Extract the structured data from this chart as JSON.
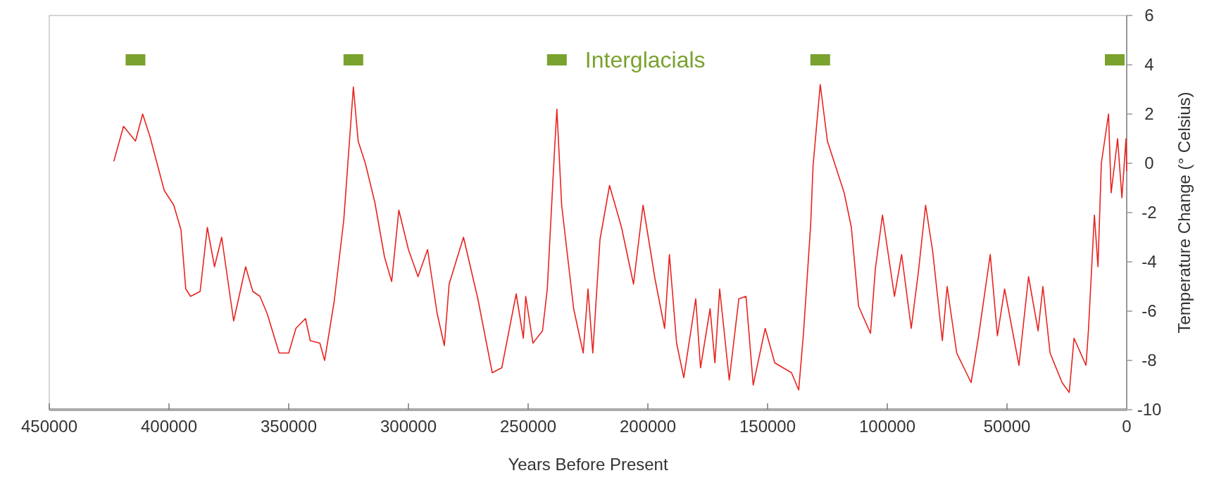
{
  "chart_data": {
    "type": "line",
    "xlabel": "Years Before Present",
    "ylabel": "Temperature Change (° Celsius)",
    "xlim": [
      450000,
      0
    ],
    "xticks": [
      450000,
      400000,
      350000,
      300000,
      250000,
      200000,
      150000,
      100000,
      50000,
      0
    ],
    "ylim": [
      -10,
      6
    ],
    "yticks": [
      -10,
      -8,
      -6,
      -4,
      -2,
      0,
      2,
      4,
      6
    ],
    "grid": false,
    "series": [
      {
        "color": "#e8231f",
        "line_style": "solid",
        "marker": "none",
        "x": [
          423000,
          419000,
          414000,
          411000,
          408000,
          402000,
          398000,
          395000,
          393000,
          391000,
          387000,
          384000,
          381000,
          378000,
          373000,
          368000,
          365000,
          362000,
          359000,
          354000,
          350000,
          347000,
          343000,
          341000,
          337000,
          335000,
          331000,
          327000,
          323000,
          321000,
          318000,
          314000,
          310000,
          307000,
          304000,
          300000,
          296000,
          292000,
          288000,
          285000,
          283000,
          277000,
          271000,
          265000,
          261000,
          255000,
          252000,
          251000,
          248000,
          244000,
          242000,
          239000,
          238000,
          236000,
          231000,
          227000,
          225000,
          223000,
          220000,
          216000,
          211000,
          206000,
          202000,
          197000,
          193000,
          191000,
          188000,
          185000,
          180000,
          178000,
          174000,
          172000,
          170000,
          166000,
          162000,
          159000,
          156000,
          151000,
          147000,
          140000,
          137000,
          135000,
          132000,
          131000,
          128000,
          125000,
          118000,
          115000,
          112000,
          107000,
          105000,
          102000,
          97000,
          94000,
          90000,
          87000,
          84000,
          81000,
          77000,
          75000,
          71000,
          68000,
          65000,
          62000,
          57000,
          54000,
          51000,
          45000,
          41000,
          37000,
          35000,
          32000,
          27000,
          24000,
          22000,
          17000,
          16000,
          13500,
          12000,
          10600,
          7600,
          6500,
          3800,
          2000,
          300,
          0
        ],
        "values": [
          0.1,
          1.5,
          0.9,
          2.0,
          1.1,
          -1.1,
          -1.7,
          -2.7,
          -5.1,
          -5.4,
          -5.2,
          -2.6,
          -4.2,
          -3.0,
          -6.4,
          -4.2,
          -5.2,
          -5.4,
          -6.1,
          -7.7,
          -7.7,
          -6.7,
          -6.3,
          -7.2,
          -7.3,
          -8.0,
          -5.6,
          -2.3,
          3.1,
          0.9,
          0.0,
          -1.6,
          -3.8,
          -4.8,
          -1.9,
          -3.5,
          -4.6,
          -3.5,
          -6.1,
          -7.4,
          -4.9,
          -3.0,
          -5.5,
          -8.5,
          -8.3,
          -5.3,
          -7.1,
          -5.4,
          -7.3,
          -6.8,
          -5.1,
          0.5,
          2.2,
          -1.7,
          -5.9,
          -7.7,
          -5.1,
          -7.7,
          -3.1,
          -0.9,
          -2.6,
          -4.9,
          -1.7,
          -4.7,
          -6.7,
          -3.7,
          -7.3,
          -8.7,
          -5.5,
          -8.3,
          -5.9,
          -8.1,
          -5.1,
          -8.8,
          -5.5,
          -5.4,
          -9.0,
          -6.7,
          -8.1,
          -8.5,
          -9.2,
          -6.9,
          -2.5,
          -0.1,
          3.2,
          0.9,
          -1.2,
          -2.6,
          -5.8,
          -6.9,
          -4.3,
          -2.1,
          -5.4,
          -3.7,
          -6.7,
          -4.4,
          -1.7,
          -3.6,
          -7.2,
          -5.0,
          -7.7,
          -8.3,
          -8.9,
          -7.1,
          -3.7,
          -7.0,
          -5.1,
          -8.2,
          -4.6,
          -6.8,
          -5.0,
          -7.7,
          -8.9,
          -9.3,
          -7.1,
          -8.2,
          -6.8,
          -2.1,
          -4.2,
          0.0,
          2.0,
          -1.2,
          1.0,
          -1.4,
          1.0,
          -0.3
        ]
      },
      {
        "type": "scatter",
        "name": "Interglacials",
        "color": "#7aa22e",
        "marker": "square",
        "x": [
          414000,
          323000,
          238000,
          128000,
          5000
        ],
        "values": [
          4.2,
          4.2,
          4.2,
          4.2,
          4.2
        ]
      }
    ]
  }
}
